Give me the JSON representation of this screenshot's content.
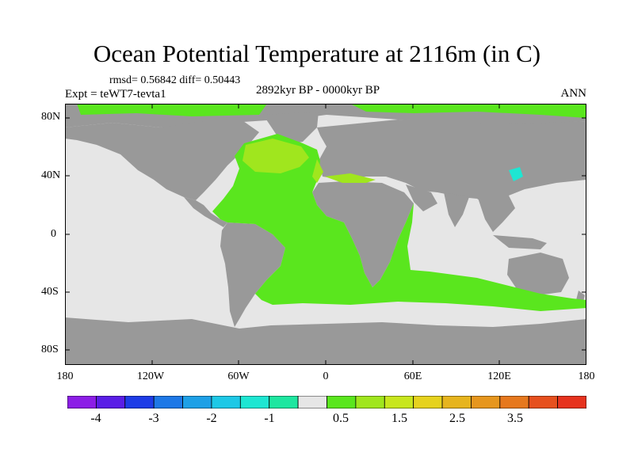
{
  "header": {
    "title": "Ocean Potential Temperature at 2116m (in C)",
    "stats": "rmsd= 0.56842 diff= 0.50443",
    "experiment": "Expt = teWT7-tevta1",
    "period": "2892kyr BP - 0000kyr BP",
    "season": "ANN"
  },
  "axes": {
    "lat_labels": [
      "80N",
      "40N",
      "0",
      "40S",
      "80S"
    ],
    "lon_labels": [
      "180",
      "120W",
      "60W",
      "0",
      "60E",
      "120E",
      "180"
    ]
  },
  "colorbar": {
    "labels": [
      "-4",
      "-3",
      "-2",
      "-1",
      "0.5",
      "1.5",
      "2.5",
      "3.5"
    ],
    "colors": [
      "#8c1ee6",
      "#5a1ee6",
      "#1e3ce6",
      "#1e78e6",
      "#1ea0e6",
      "#1ec8e6",
      "#1ee6d2",
      "#1ee6a0",
      "#e6e6e6",
      "#5ae61e",
      "#a0e61e",
      "#c8e61e",
      "#e6d21e",
      "#e6b41e",
      "#e6961e",
      "#e6781e",
      "#e6501e",
      "#e6321e"
    ]
  },
  "chart_data": {
    "type": "heatmap",
    "title": "Ocean Potential Temperature at 2116m (in C)",
    "subtitle": "rmsd= 0.56842 diff= 0.50443",
    "experiment": "Expt = teWT7-tevta1",
    "period": "2892kyr BP - 0000kyr BP",
    "season": "ANN",
    "x_range_deg": [
      -180,
      180
    ],
    "y_range_deg": [
      -90,
      90
    ],
    "x_ticks": [
      "180",
      "120W",
      "60W",
      "0",
      "60E",
      "120E",
      "180"
    ],
    "y_ticks": [
      "80N",
      "40N",
      "0",
      "40S",
      "80S"
    ],
    "colorbar_labels": [
      "-4",
      "-3",
      "-2",
      "-1",
      "0.5",
      "1.5",
      "2.5",
      "3.5"
    ],
    "field_summary": [
      {
        "region": "Atlantic basin",
        "range": "0.5 to 1.5"
      },
      {
        "region": "Southern Ocean band 40S-55S",
        "range": "0.5 to 1.5"
      },
      {
        "region": "Northern margin / Arctic fringe",
        "range": "0.5 to 1.5"
      },
      {
        "region": "Pacific and Indian Oceans",
        "range": "-0.5 to 0.5"
      },
      {
        "region": "Sea of Japan",
        "range": "-1 to -0.5"
      }
    ]
  }
}
